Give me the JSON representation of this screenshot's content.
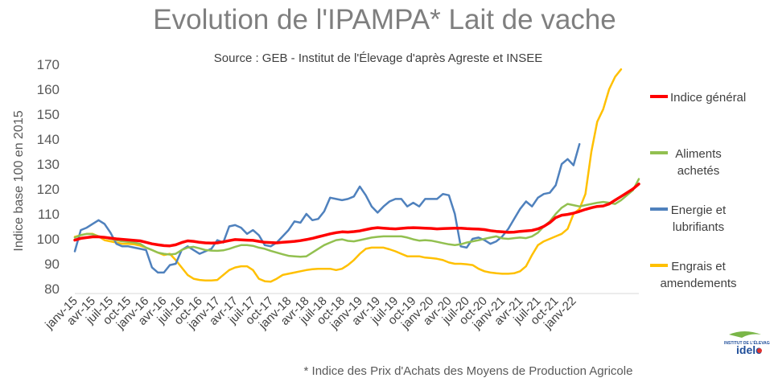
{
  "chart_data": {
    "type": "line",
    "title": "Evolution de l'IPAMPA* Lait de vache",
    "subtitle": "Source : GEB - Institut de l'Élevage d'après  Agreste et INSEE",
    "ylabel": "Indice base 100 en 2015",
    "xlabel": "",
    "footnote": "* Indice des Prix d'Achats des Moyens de Production Agricole",
    "ylim": [
      80,
      170
    ],
    "yticks": [
      80,
      90,
      100,
      110,
      120,
      130,
      140,
      150,
      160,
      170
    ],
    "grid": false,
    "legend_position": "right",
    "x_tick_labels": [
      "janv-15",
      "avr-15",
      "juil-15",
      "oct-15",
      "janv-16",
      "avr-16",
      "juil-16",
      "oct-16",
      "janv-17",
      "avr-17",
      "juil-17",
      "oct-17",
      "janv-18",
      "avr-18",
      "juil-18",
      "oct-18",
      "janv-19",
      "avr-19",
      "juil-19",
      "oct-19",
      "janv-20",
      "avr-20",
      "juil-20",
      "oct-20",
      "janv-21",
      "avr-21",
      "juil-21",
      "oct-21",
      "janv-22"
    ],
    "series": [
      {
        "name": "Indice général",
        "color": "#ff0000",
        "values": [
          99.5,
          100.2,
          100.5,
          100.8,
          100.8,
          100.6,
          100.3,
          100.0,
          99.8,
          99.6,
          99.4,
          99.2,
          98.6,
          98.0,
          97.6,
          97.3,
          97.2,
          97.6,
          98.5,
          99.2,
          99.0,
          98.6,
          98.4,
          98.3,
          98.4,
          98.8,
          99.3,
          99.7,
          99.6,
          99.5,
          99.4,
          99.0,
          98.6,
          98.5,
          98.4,
          98.6,
          98.8,
          99.0,
          99.3,
          99.7,
          100.2,
          100.8,
          101.4,
          102.0,
          102.5,
          102.8,
          102.7,
          102.9,
          103.2,
          103.7,
          104.2,
          104.5,
          104.3,
          104.1,
          104.0,
          104.2,
          104.4,
          104.5,
          104.4,
          104.3,
          104.2,
          104.0,
          104.1,
          104.2,
          104.3,
          104.3,
          104.1,
          104.0,
          103.9,
          103.7,
          103.3,
          103.0,
          102.8,
          102.6,
          102.7,
          103.0,
          103.2,
          103.4,
          104.0,
          105.0,
          106.5,
          108.5,
          109.5,
          109.8,
          110.3,
          111.0,
          111.8,
          112.5,
          113.0,
          113.2,
          114.0,
          115.5,
          117.0,
          118.5,
          120.0,
          122.0
        ]
      },
      {
        "name": "Aliments achetés",
        "color": "#92c050",
        "values": [
          100.5,
          101.5,
          102.0,
          101.8,
          101.0,
          100.5,
          100.0,
          99.5,
          99.0,
          98.8,
          98.5,
          98.0,
          96.5,
          95.5,
          94.5,
          94.0,
          93.7,
          94.0,
          95.5,
          96.5,
          96.8,
          96.2,
          95.5,
          95.3,
          95.2,
          95.4,
          96.0,
          96.8,
          97.5,
          97.5,
          97.2,
          96.5,
          96.0,
          95.2,
          94.5,
          93.8,
          93.2,
          93.0,
          92.8,
          93.0,
          94.5,
          96.0,
          97.5,
          98.5,
          99.5,
          99.8,
          99.2,
          99.0,
          99.5,
          100.0,
          100.5,
          100.8,
          101.0,
          101.0,
          101.0,
          101.0,
          100.5,
          99.8,
          99.3,
          99.5,
          99.3,
          98.8,
          98.3,
          97.8,
          97.5,
          97.8,
          98.5,
          99.0,
          99.5,
          100.0,
          100.5,
          101.0,
          100.2,
          100.0,
          100.3,
          100.5,
          100.3,
          101.0,
          102.5,
          105.0,
          107.0,
          110.0,
          112.5,
          114.0,
          113.5,
          113.0,
          113.5,
          114.0,
          114.5,
          114.8,
          114.5,
          114.0,
          115.5,
          117.5,
          119.5,
          124.0
        ]
      },
      {
        "name": "Energie et lubrifiants",
        "color": "#4f81bd",
        "values": [
          95.0,
          103.5,
          104.5,
          106.0,
          107.5,
          106.0,
          102.5,
          98.0,
          97.0,
          97.0,
          96.5,
          96.0,
          95.5,
          88.5,
          86.5,
          86.5,
          89.5,
          90.0,
          95.5,
          97.0,
          95.5,
          94.0,
          95.0,
          96.0,
          99.5,
          98.5,
          105.0,
          105.5,
          104.5,
          102.0,
          103.5,
          101.5,
          97.5,
          97.0,
          98.5,
          101.0,
          103.5,
          107.0,
          106.5,
          110.0,
          107.5,
          108.0,
          111.0,
          116.5,
          116.0,
          115.5,
          116.0,
          117.0,
          121.0,
          117.5,
          113.0,
          110.5,
          113.0,
          115.0,
          116.0,
          116.0,
          113.0,
          114.5,
          113.0,
          116.0,
          116.0,
          116.0,
          118.0,
          117.5,
          110.0,
          97.0,
          96.5,
          100.0,
          100.5,
          99.5,
          98.0,
          99.0,
          101.0,
          104.0,
          108.0,
          112.0,
          115.0,
          113.0,
          116.5,
          118.0,
          118.5,
          121.5,
          130.0,
          132.0,
          129.5,
          138.0
        ]
      },
      {
        "name": "Engrais et amendements",
        "color": "#ffc000",
        "values": [
          100.8,
          101.5,
          102.0,
          102.0,
          101.0,
          99.5,
          99.0,
          98.5,
          98.0,
          98.0,
          97.8,
          97.3,
          96.5,
          95.5,
          94.5,
          93.5,
          94.0,
          91.5,
          88.5,
          85.5,
          84.0,
          83.5,
          83.3,
          83.3,
          83.5,
          85.5,
          87.5,
          88.5,
          89.0,
          89.0,
          87.5,
          84.0,
          83.0,
          82.8,
          84.0,
          85.5,
          86.0,
          86.5,
          87.0,
          87.5,
          87.8,
          88.0,
          88.0,
          88.0,
          87.5,
          88.0,
          89.5,
          91.5,
          94.0,
          96.0,
          96.5,
          96.5,
          96.5,
          95.8,
          95.0,
          94.0,
          93.0,
          93.0,
          93.0,
          92.5,
          92.3,
          92.0,
          91.5,
          90.5,
          90.0,
          90.0,
          89.8,
          89.5,
          88.0,
          87.0,
          86.5,
          86.2,
          86.0,
          86.0,
          86.2,
          87.0,
          89.0,
          93.5,
          97.5,
          99.0,
          100.0,
          101.0,
          102.0,
          104.0,
          110.0,
          112.0,
          118.0,
          135.0,
          147.0,
          152.0,
          160.0,
          165.0,
          168.0
        ]
      }
    ]
  },
  "legend": {
    "items": [
      {
        "lines": [
          "Indice général"
        ],
        "color": "#ff0000"
      },
      {
        "lines": [
          "Aliments",
          "achetés"
        ],
        "color": "#92c050"
      },
      {
        "lines": [
          "Energie et",
          "lubrifiants"
        ],
        "color": "#4f81bd"
      },
      {
        "lines": [
          "Engrais et",
          "amendements"
        ],
        "color": "#ffc000"
      }
    ]
  },
  "logo": {
    "small_text": "INSTITUT DE L'ÉLEVAGE",
    "brand": "idele"
  }
}
